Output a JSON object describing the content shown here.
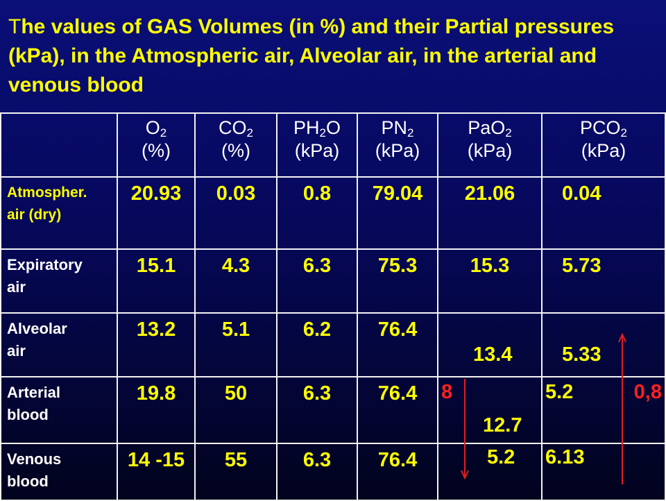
{
  "title": {
    "first_letter": "T",
    "rest": "he values of GAS Volumes (in %) and their Partial pressures (kPa), in the Atmospheric air, Alveolar air, in the  arterial and venous blood"
  },
  "header": [
    {
      "sym": "O",
      "sub": "2",
      "sym2": "",
      "unit": "(%)"
    },
    {
      "sym": "CO",
      "sub": "2",
      "sym2": "",
      "unit": "(%)"
    },
    {
      "sym": "PH",
      "sub": "2",
      "sym2": "O",
      "unit": "(kPa)"
    },
    {
      "sym": "PN",
      "sub": "2",
      "sym2": "",
      "unit": "(kPa)"
    },
    {
      "sym": "PaO",
      "sub": "2",
      "sym2": "",
      "unit": "(kPa)"
    },
    {
      "sym": "PCO",
      "sub": "2",
      "sym2": "",
      "unit": "(kPa)"
    }
  ],
  "rows": [
    {
      "label1": "Atmospher.",
      "label2": "air (dry)",
      "o2": "20.93",
      "co2": "0.03",
      "ph2o": "0.8",
      "pn2": "79.04",
      "pao2": "21.06",
      "pco2": "0.04"
    },
    {
      "label1": "Expiratory",
      "label2": "air",
      "o2": "15.1",
      "co2": "4.3",
      "ph2o": "6.3",
      "pn2": "75.3",
      "pao2": "15.3",
      "pco2": "5.73"
    },
    {
      "label1": "Alveolar",
      "label2": "air",
      "o2": "13.2",
      "co2": "5.1",
      "ph2o": "6.2",
      "pn2": "76.4",
      "pao2": "13.4",
      "pco2": "5.33"
    },
    {
      "label1": "Arterial",
      "label2": "blood",
      "o2": "19.8",
      "co2": "50",
      "ph2o": "6.3",
      "pn2": "76.4",
      "pao2": "12.7",
      "pao2_diff": "8",
      "pco2": "5.2",
      "pco2_diff": "0,8"
    },
    {
      "label1": "Venous",
      "label2": "blood",
      "o2": "14 -15",
      "co2": "55",
      "ph2o": "6.3",
      "pn2": "76.4",
      "pao2": "5.2",
      "pco2": "6.13"
    }
  ],
  "colors": {
    "text_highlight": "#ffff00",
    "text_main": "#ffffff",
    "diff_red": "#ff2020",
    "background": "#0a0f78"
  }
}
